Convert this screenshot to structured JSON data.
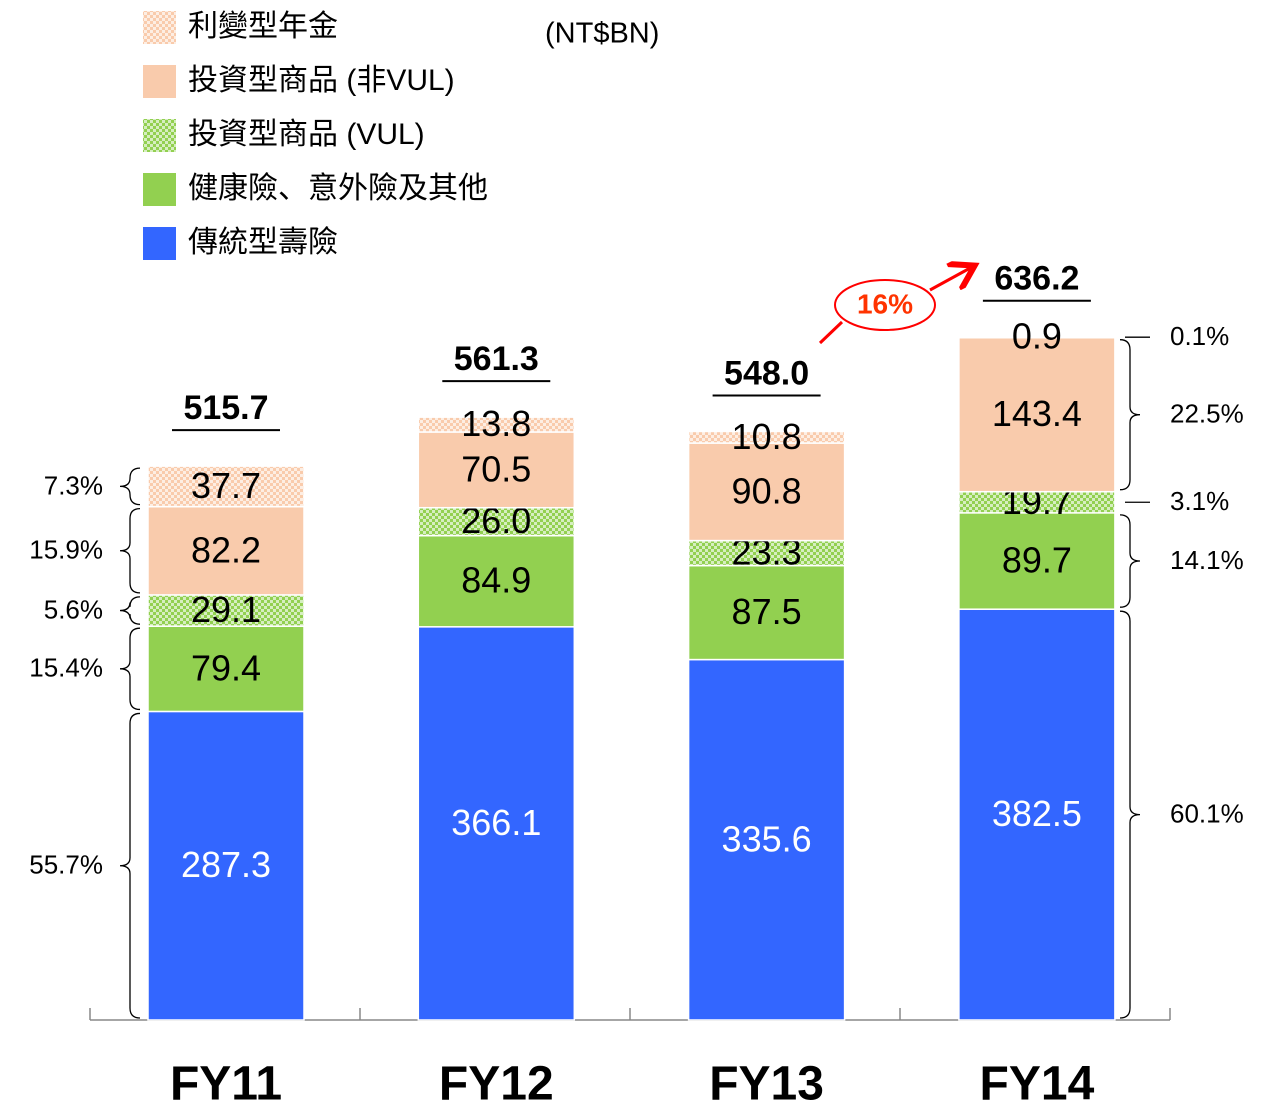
{
  "chart_data": {
    "type": "stacked_bar",
    "unit": "(NT$BN)",
    "categories": [
      "FY11",
      "FY12",
      "FY13",
      "FY14"
    ],
    "series": [
      {
        "name": "傳統型壽險",
        "color": "#3366ff",
        "values": [
          287.3,
          366.1,
          335.6,
          382.5
        ],
        "shares": [
          55.7,
          null,
          null,
          60.1
        ],
        "share_labels": [
          "55.7%",
          null,
          null,
          "60.1%"
        ]
      },
      {
        "name": "健康險、意外險及其他",
        "color": "#92d050",
        "values": [
          79.4,
          84.9,
          87.5,
          89.7
        ],
        "shares": [
          15.4,
          null,
          null,
          14.1
        ],
        "share_labels": [
          "15.4%",
          null,
          null,
          "14.1%"
        ]
      },
      {
        "name": "投資型商品 (VUL)",
        "color": "#92d050",
        "pattern": "hatched",
        "values": [
          29.1,
          26.0,
          23.3,
          19.7
        ],
        "value_labels": [
          "29.1",
          "26.0",
          "23.3",
          "19.7"
        ],
        "shares": [
          5.6,
          null,
          null,
          3.1
        ],
        "share_labels": [
          "5.6%",
          null,
          null,
          "3.1%"
        ]
      },
      {
        "name": "投資型商品 (非VUL)",
        "color": "#f9cbac",
        "values": [
          82.2,
          70.5,
          90.8,
          143.4
        ],
        "shares": [
          15.9,
          null,
          null,
          22.5
        ],
        "share_labels": [
          "15.9%",
          null,
          null,
          "22.5%"
        ]
      },
      {
        "name": "利變型年金",
        "color": "#f9cbac",
        "pattern": "hatched",
        "values": [
          37.7,
          13.8,
          10.8,
          0.9
        ],
        "shares": [
          7.3,
          null,
          null,
          0.1
        ],
        "share_labels": [
          "7.3%",
          null,
          null,
          "0.1%"
        ]
      }
    ],
    "totals": [
      515.7,
      561.3,
      548.0,
      636.2
    ],
    "total_labels": [
      "515.7",
      "561.3",
      "548.0",
      "636.2"
    ],
    "growth_label": "16%"
  }
}
